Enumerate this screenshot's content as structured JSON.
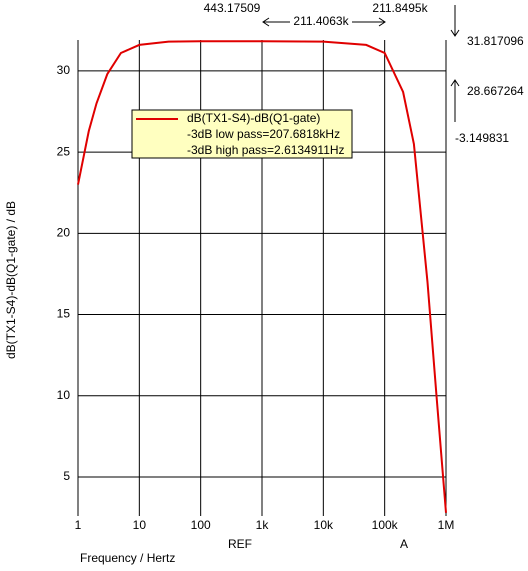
{
  "chart_data": {
    "type": "line",
    "x_label": "Frequency / Hertz",
    "y_label": "dB(TX1-S4)-dB(Q1-gate) / dB",
    "x": [
      1,
      1.5,
      2,
      3,
      5,
      10,
      30,
      100,
      1000,
      10000,
      50000,
      100000,
      200000,
      300000,
      500000,
      700000,
      1000000
    ],
    "series": [
      {
        "name": "dB(TX1-S4)-dB(Q1-gate)",
        "color": "#e00000",
        "values": [
          23,
          26.3,
          28,
          29.8,
          31.1,
          31.6,
          31.8,
          31.82,
          31.82,
          31.8,
          31.6,
          31.1,
          28.7,
          25.5,
          17,
          10,
          2.8
        ]
      }
    ],
    "legend_notes": [
      "-3dB low pass=207.6818kHz",
      "-3dB high pass=2.6134911Hz"
    ],
    "xscale": "log",
    "xlim": [
      1,
      1000000
    ],
    "xticks": [
      1,
      10,
      100,
      {
        "value": 1000,
        "label": "1k"
      },
      {
        "value": 10000,
        "label": "10k"
      },
      {
        "value": 100000,
        "label": "100k"
      },
      {
        "value": 1000000,
        "label": "1M"
      }
    ],
    "ylim": [
      2.6,
      31.9
    ],
    "yticks": [
      5,
      10,
      15,
      20,
      25,
      30
    ],
    "grid": true,
    "cursor_labels": [
      "REF",
      "A"
    ],
    "annotations": [
      "443.17509",
      "211.4063k",
      "211.8495k",
      "31.817096",
      "28.667264",
      "-3.149831"
    ]
  }
}
